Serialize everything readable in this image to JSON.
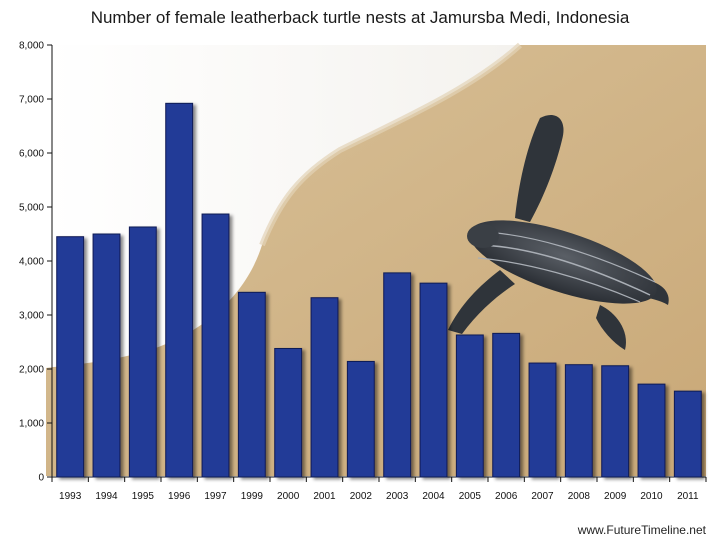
{
  "chart_data": {
    "type": "bar",
    "title": "Number of female leatherback turtle nests at Jamursba Medi, Indonesia",
    "categories": [
      "1993",
      "1994",
      "1995",
      "1996",
      "1997",
      "1999",
      "2000",
      "2001",
      "2002",
      "2003",
      "2004",
      "2005",
      "2006",
      "2007",
      "2008",
      "2009",
      "2010",
      "2011"
    ],
    "values": [
      4450,
      4500,
      4630,
      6920,
      4870,
      3420,
      2380,
      3320,
      2140,
      3780,
      3590,
      2630,
      2660,
      2110,
      2080,
      2060,
      1720,
      1590
    ],
    "ylim": [
      0,
      8000
    ],
    "yticks": [
      "0",
      "1,000",
      "2,000",
      "3,000",
      "4,000",
      "5,000",
      "6,000",
      "7,000",
      "8,000"
    ],
    "xlabel": "",
    "ylabel": "",
    "bar_color": "#243a97",
    "background_image": "leatherback-turtle-on-beach"
  },
  "footer": "www.FutureTimeline.net"
}
